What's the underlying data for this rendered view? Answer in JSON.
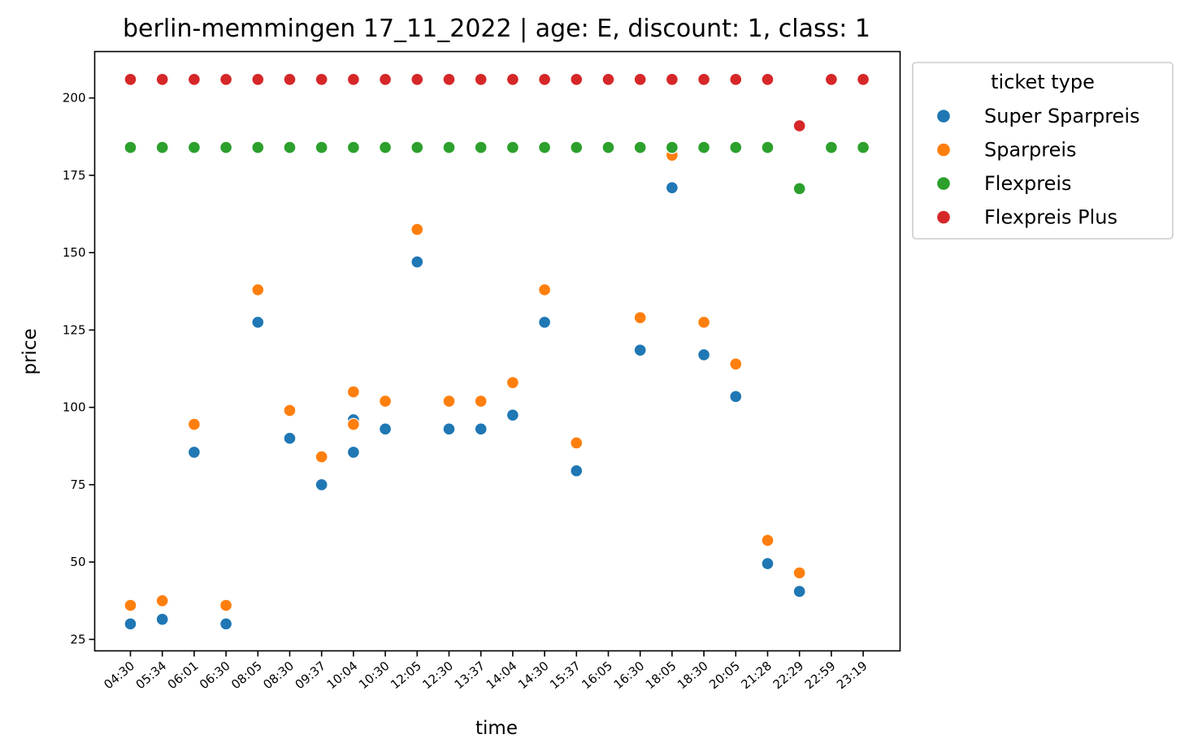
{
  "chart_data": {
    "type": "scatter",
    "title": "berlin-memmingen 17_11_2022 | age: E, discount: 1, class: 1",
    "xlabel": "time",
    "ylabel": "price",
    "categories": [
      "04:30",
      "05:34",
      "06:01",
      "06:30",
      "08:05",
      "08:30",
      "09:37",
      "10:04",
      "10:30",
      "12:05",
      "12:30",
      "13:37",
      "14:04",
      "14:30",
      "15:37",
      "16:05",
      "16:30",
      "18:05",
      "18:30",
      "20:05",
      "21:28",
      "22:29",
      "22:59",
      "23:19"
    ],
    "ylim": [
      21.3,
      215
    ],
    "yticks": [
      25,
      50,
      75,
      100,
      125,
      150,
      175,
      200
    ],
    "grid": false,
    "legend": {
      "title": "ticket type",
      "position": "outside-top-right"
    },
    "series": [
      {
        "name": "Super Sparpreis",
        "color": "#1f77b4",
        "points": [
          [
            "04:30",
            30
          ],
          [
            "05:34",
            31.5
          ],
          [
            "06:01",
            85.5
          ],
          [
            "06:30",
            30
          ],
          [
            "08:05",
            127.5
          ],
          [
            "08:30",
            90
          ],
          [
            "09:37",
            75
          ],
          [
            "10:04",
            96
          ],
          [
            "10:04",
            85.5
          ],
          [
            "10:30",
            93
          ],
          [
            "12:05",
            147
          ],
          [
            "12:30",
            93
          ],
          [
            "13:37",
            93
          ],
          [
            "14:04",
            97.5
          ],
          [
            "14:30",
            127.5
          ],
          [
            "15:37",
            79.5
          ],
          [
            "16:30",
            118.5
          ],
          [
            "18:05",
            171
          ],
          [
            "18:30",
            117
          ],
          [
            "20:05",
            103.5
          ],
          [
            "21:28",
            49.5
          ],
          [
            "22:29",
            40.5
          ]
        ]
      },
      {
        "name": "Sparpreis",
        "color": "#ff7f0e",
        "points": [
          [
            "04:30",
            36
          ],
          [
            "05:34",
            37.5
          ],
          [
            "06:01",
            94.5
          ],
          [
            "06:30",
            36
          ],
          [
            "08:05",
            138
          ],
          [
            "08:30",
            99
          ],
          [
            "09:37",
            84
          ],
          [
            "10:04",
            105
          ],
          [
            "10:04",
            94.5
          ],
          [
            "10:30",
            102
          ],
          [
            "12:05",
            157.5
          ],
          [
            "12:30",
            102
          ],
          [
            "13:37",
            102
          ],
          [
            "14:04",
            108
          ],
          [
            "14:30",
            138
          ],
          [
            "15:37",
            88.5
          ],
          [
            "16:30",
            129
          ],
          [
            "18:05",
            181.5
          ],
          [
            "18:30",
            127.5
          ],
          [
            "20:05",
            114
          ],
          [
            "21:28",
            57
          ],
          [
            "22:29",
            46.5
          ]
        ]
      },
      {
        "name": "Flexpreis",
        "color": "#2ca02c",
        "points": [
          [
            "04:30",
            184
          ],
          [
            "05:34",
            184
          ],
          [
            "06:01",
            184
          ],
          [
            "06:30",
            184
          ],
          [
            "08:05",
            184
          ],
          [
            "08:30",
            184
          ],
          [
            "09:37",
            184
          ],
          [
            "10:04",
            184
          ],
          [
            "10:30",
            184
          ],
          [
            "12:05",
            184
          ],
          [
            "12:30",
            184
          ],
          [
            "13:37",
            184
          ],
          [
            "14:04",
            184
          ],
          [
            "14:30",
            184
          ],
          [
            "15:37",
            184
          ],
          [
            "16:05",
            184
          ],
          [
            "16:30",
            184
          ],
          [
            "18:05",
            184
          ],
          [
            "18:30",
            184
          ],
          [
            "20:05",
            184
          ],
          [
            "21:28",
            184
          ],
          [
            "22:29",
            170.7
          ],
          [
            "22:59",
            184
          ],
          [
            "23:19",
            184
          ]
        ]
      },
      {
        "name": "Flexpreis Plus",
        "color": "#d62728",
        "points": [
          [
            "04:30",
            206
          ],
          [
            "05:34",
            206
          ],
          [
            "06:01",
            206
          ],
          [
            "06:30",
            206
          ],
          [
            "08:05",
            206
          ],
          [
            "08:30",
            206
          ],
          [
            "09:37",
            206
          ],
          [
            "10:04",
            206
          ],
          [
            "10:30",
            206
          ],
          [
            "12:05",
            206
          ],
          [
            "12:30",
            206
          ],
          [
            "13:37",
            206
          ],
          [
            "14:04",
            206
          ],
          [
            "14:30",
            206
          ],
          [
            "15:37",
            206
          ],
          [
            "16:05",
            206
          ],
          [
            "16:30",
            206
          ],
          [
            "18:05",
            206
          ],
          [
            "18:30",
            206
          ],
          [
            "20:05",
            206
          ],
          [
            "21:28",
            206
          ],
          [
            "22:29",
            191
          ],
          [
            "22:59",
            206
          ],
          [
            "23:19",
            206
          ]
        ]
      }
    ]
  }
}
